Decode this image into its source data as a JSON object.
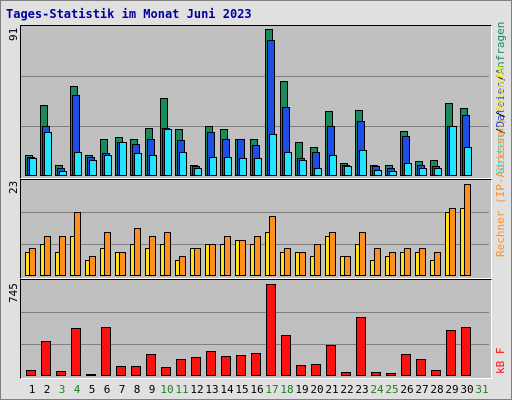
{
  "title": "Tages-Statistik im Monat Juni 2023",
  "colors": {
    "hits": "#1a8a5a",
    "files": "#1d4ee6",
    "requests": "#22e5ff",
    "hosts": "#ffe01a",
    "visits": "#ff9020",
    "kbytes": "#ff1010",
    "weekend": "#208020",
    "weekday": "#000000"
  },
  "labels": {
    "panel1_max": "91",
    "panel2_max": "23",
    "panel3_max": "745",
    "legend1_a": "Anfragen",
    "legend1_sep1": "/",
    "legend1_b": "Dateien",
    "legend1_sep2": "/",
    "legend1_c": "Seiten",
    "legend2_a": "Besuche",
    "legend2_sep": "/",
    "legend2_b": "Rechner (IP-Adressen)",
    "legend3": "kB F"
  },
  "chart_data": {
    "type": "bar",
    "days": [
      1,
      2,
      3,
      4,
      5,
      6,
      7,
      8,
      9,
      10,
      11,
      12,
      13,
      14,
      15,
      16,
      17,
      18,
      19,
      20,
      21,
      22,
      23,
      24,
      25,
      26,
      27,
      28,
      29,
      30,
      31
    ],
    "weekend_days": [
      3,
      4,
      10,
      11,
      17,
      18,
      24,
      25,
      31
    ],
    "panel1": {
      "ymax": 91,
      "series": [
        {
          "name": "Anfragen",
          "values": [
            13,
            44,
            7,
            56,
            13,
            23,
            24,
            23,
            30,
            48,
            29,
            7,
            31,
            29,
            23,
            23,
            91,
            59,
            21,
            18,
            40,
            8,
            41,
            7,
            7,
            28,
            9,
            10,
            45,
            42,
            0
          ]
        },
        {
          "name": "Dateien",
          "values": [
            12,
            31,
            5,
            50,
            12,
            14,
            21,
            20,
            23,
            30,
            22,
            6,
            27,
            23,
            23,
            19,
            84,
            43,
            11,
            15,
            31,
            7,
            34,
            6,
            5,
            25,
            7,
            6,
            31,
            38,
            0
          ]
        },
        {
          "name": "Seiten",
          "values": [
            11,
            27,
            3,
            15,
            10,
            13,
            21,
            14,
            13,
            29,
            15,
            5,
            12,
            12,
            11,
            11,
            26,
            15,
            10,
            5,
            13,
            6,
            16,
            4,
            3,
            8,
            5,
            5,
            31,
            18,
            0
          ]
        }
      ]
    },
    "panel2": {
      "ymax": 23,
      "series": [
        {
          "name": "Besuche",
          "values": [
            6,
            8,
            6,
            10,
            4,
            7,
            6,
            8,
            7,
            8,
            4,
            7,
            8,
            8,
            9,
            8,
            11,
            6,
            6,
            5,
            10,
            5,
            8,
            4,
            5,
            6,
            6,
            4,
            16,
            17,
            0
          ]
        },
        {
          "name": "Rechner (IP-Adressen)",
          "values": [
            7,
            10,
            10,
            16,
            5,
            11,
            6,
            12,
            10,
            11,
            5,
            7,
            8,
            10,
            9,
            10,
            15,
            7,
            6,
            8,
            11,
            5,
            11,
            7,
            6,
            7,
            7,
            6,
            17,
            23,
            0
          ]
        }
      ]
    },
    "panel3": {
      "ymax": 745,
      "series": [
        {
          "name": "kB F",
          "values": [
            45,
            285,
            40,
            385,
            20,
            400,
            85,
            85,
            180,
            70,
            140,
            155,
            200,
            160,
            170,
            190,
            745,
            330,
            90,
            95,
            255,
            35,
            480,
            30,
            25,
            180,
            140,
            45,
            370,
            395,
            0
          ]
        }
      ]
    }
  }
}
